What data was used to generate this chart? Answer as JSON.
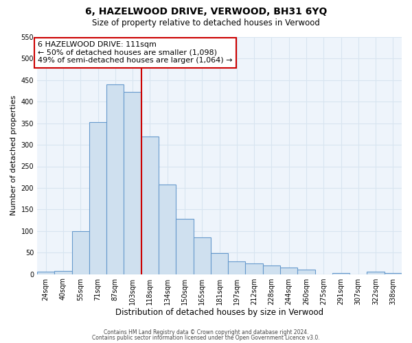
{
  "title": "6, HAZELWOOD DRIVE, VERWOOD, BH31 6YQ",
  "subtitle": "Size of property relative to detached houses in Verwood",
  "xlabel": "Distribution of detached houses by size in Verwood",
  "ylabel": "Number of detached properties",
  "bar_color": "#cfe0ef",
  "bar_edge_color": "#6699cc",
  "bin_labels": [
    "24sqm",
    "40sqm",
    "55sqm",
    "71sqm",
    "87sqm",
    "103sqm",
    "118sqm",
    "134sqm",
    "150sqm",
    "165sqm",
    "181sqm",
    "197sqm",
    "212sqm",
    "228sqm",
    "244sqm",
    "260sqm",
    "275sqm",
    "291sqm",
    "307sqm",
    "322sqm",
    "338sqm"
  ],
  "bar_heights": [
    5,
    8,
    100,
    353,
    440,
    422,
    320,
    208,
    129,
    85,
    48,
    29,
    25,
    20,
    15,
    10,
    0,
    3,
    0,
    5,
    3
  ],
  "vline_x": 5.5,
  "vline_color": "#cc0000",
  "annotation_title": "6 HAZELWOOD DRIVE: 111sqm",
  "annotation_line1": "← 50% of detached houses are smaller (1,098)",
  "annotation_line2": "49% of semi-detached houses are larger (1,064) →",
  "annotation_box_color": "#ffffff",
  "annotation_box_edge": "#cc0000",
  "ylim": [
    0,
    550
  ],
  "yticks": [
    0,
    50,
    100,
    150,
    200,
    250,
    300,
    350,
    400,
    450,
    500,
    550
  ],
  "footer1": "Contains HM Land Registry data © Crown copyright and database right 2024.",
  "footer2": "Contains public sector information licensed under the Open Government Licence v3.0.",
  "background_color": "#ffffff",
  "grid_color": "#d8e4f0"
}
